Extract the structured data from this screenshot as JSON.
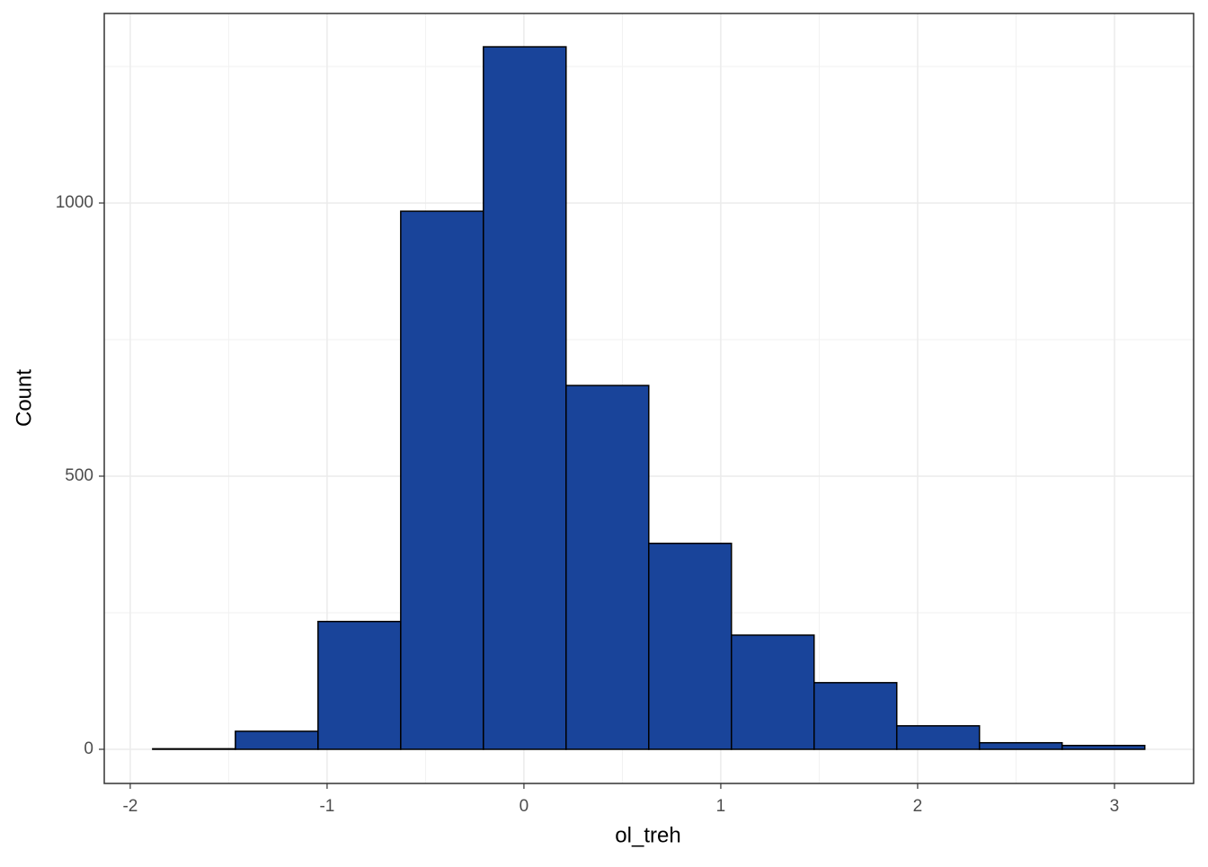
{
  "chart_data": {
    "type": "histogram",
    "x_label": "ol_treh",
    "y_label": "Count",
    "bins": [
      -1.886,
      -1.466,
      -1.046,
      -0.626,
      -0.206,
      0.214,
      0.634,
      1.054,
      1.474,
      1.894,
      2.314,
      2.734,
      3.154
    ],
    "values": [
      1,
      33,
      234,
      985,
      1286,
      666,
      377,
      209,
      122,
      43,
      12,
      7
    ],
    "color": "#19449a",
    "edge_color": "#000000",
    "xlim": [
      -2.132,
      3.402
    ],
    "xticks": [
      -2,
      -1,
      0,
      1,
      2,
      3
    ],
    "ylim": [
      -62.5,
      1347
    ],
    "yticks": [
      0,
      500,
      1000
    ],
    "grid": true
  }
}
